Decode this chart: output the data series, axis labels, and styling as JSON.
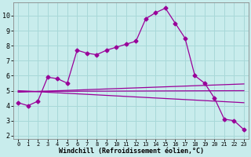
{
  "line1_x": [
    0,
    1,
    2,
    3,
    4,
    5,
    6,
    7,
    8,
    9,
    10,
    11,
    12,
    13,
    14,
    15,
    16,
    17,
    18,
    19,
    20,
    21,
    22,
    23
  ],
  "line1_y": [
    4.2,
    4.0,
    4.3,
    5.9,
    5.8,
    5.5,
    7.7,
    7.5,
    7.4,
    7.7,
    7.9,
    8.1,
    8.3,
    9.8,
    10.2,
    10.5,
    9.5,
    8.5,
    6.0,
    5.5,
    4.5,
    3.1,
    3.0,
    2.4
  ],
  "line2_x": [
    0,
    23
  ],
  "line2_y": [
    4.9,
    5.45
  ],
  "line3_x": [
    0,
    23
  ],
  "line3_y": [
    4.95,
    5.0
  ],
  "line4_x": [
    0,
    23
  ],
  "line4_y": [
    5.0,
    4.2
  ],
  "line_color": "#990099",
  "bg_color": "#c8ecec",
  "grid_color": "#a8d8d8",
  "xlabel": "Windchill (Refroidissement éolien,°C)",
  "xlim": [
    -0.5,
    23.5
  ],
  "ylim": [
    1.8,
    10.9
  ],
  "yticks": [
    2,
    3,
    4,
    5,
    6,
    7,
    8,
    9,
    10
  ],
  "xticks": [
    0,
    1,
    2,
    3,
    4,
    5,
    6,
    7,
    8,
    9,
    10,
    11,
    12,
    13,
    14,
    15,
    16,
    17,
    18,
    19,
    20,
    21,
    22,
    23
  ],
  "marker": "D",
  "markersize": 2.5,
  "linewidth": 0.9
}
